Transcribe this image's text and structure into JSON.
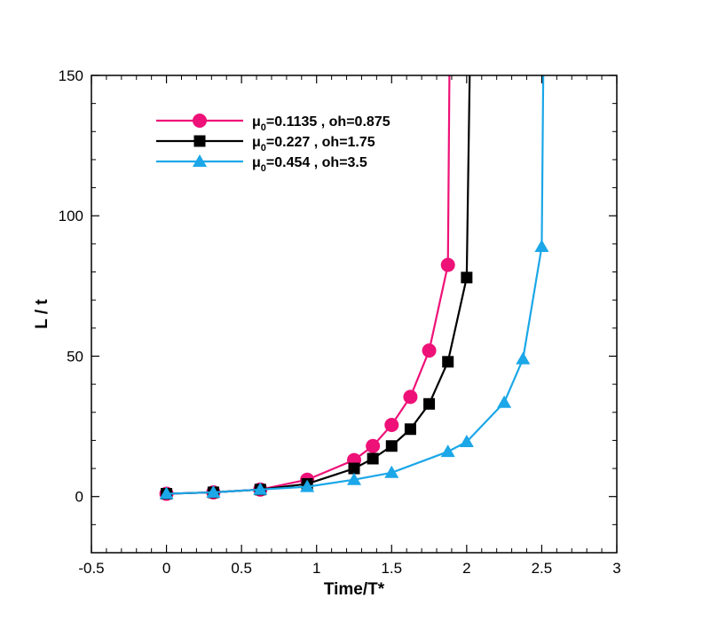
{
  "chart_data": {
    "type": "line",
    "xlabel": "Time/T*",
    "ylabel": "L / t",
    "xlim": [
      -0.5,
      3
    ],
    "ylim": [
      -20,
      150
    ],
    "x_ticks": [
      -0.5,
      0,
      0.5,
      1,
      1.5,
      2,
      2.5,
      3
    ],
    "y_ticks": [
      0,
      50,
      100,
      150
    ],
    "grid": false,
    "legend_position": "top-left",
    "series": [
      {
        "name_prefix": "μ",
        "name_subscript": "0",
        "name_suffix": "=0.1135 , oh=0.875",
        "color": "#ee1177",
        "marker": "circle",
        "x": [
          0,
          0.3125,
          0.625,
          0.9375,
          1.25,
          1.375,
          1.5,
          1.625,
          1.75,
          1.875,
          1.885
        ],
        "y": [
          1,
          1.5,
          2.5,
          6,
          13,
          18,
          25.5,
          35.5,
          52,
          82.5,
          150
        ],
        "marker_count": 10
      },
      {
        "name_prefix": "μ",
        "name_subscript": "0",
        "name_suffix": "=0.227 , oh=1.75",
        "color": "#000000",
        "marker": "square",
        "x": [
          0,
          0.3125,
          0.625,
          0.9375,
          1.25,
          1.375,
          1.5,
          1.625,
          1.75,
          1.875,
          2.0,
          2.02
        ],
        "y": [
          1,
          1.5,
          2.5,
          4.5,
          10,
          13.5,
          18,
          24,
          33,
          48,
          78,
          150
        ],
        "marker_count": 11
      },
      {
        "name_prefix": "μ",
        "name_subscript": "0",
        "name_suffix": "=0.454 , oh=3.5",
        "color": "#1ba7e8",
        "marker": "triangle",
        "x": [
          0,
          0.3125,
          0.625,
          0.9375,
          1.25,
          1.5,
          1.875,
          2.0,
          2.25,
          2.375,
          2.5,
          2.51
        ],
        "y": [
          1,
          1.5,
          2.5,
          3.5,
          6,
          8.5,
          16,
          19.5,
          33.5,
          49,
          89,
          150
        ],
        "marker_count": 11
      }
    ]
  }
}
